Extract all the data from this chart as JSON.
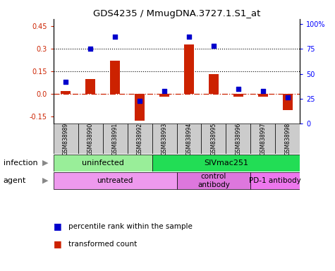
{
  "title": "GDS4235 / MmugDNA.3727.1.S1_at",
  "samples": [
    "GSM838989",
    "GSM838990",
    "GSM838991",
    "GSM838992",
    "GSM838993",
    "GSM838994",
    "GSM838995",
    "GSM838996",
    "GSM838997",
    "GSM838998"
  ],
  "transformed_count": [
    0.02,
    0.1,
    0.22,
    -0.18,
    -0.02,
    0.33,
    0.13,
    -0.02,
    -0.02,
    -0.11
  ],
  "percentile_rank": [
    42,
    75,
    87,
    23,
    33,
    87,
    78,
    35,
    33,
    26
  ],
  "ylim_left": [
    -0.2,
    0.5
  ],
  "ylim_right": [
    0,
    105
  ],
  "yticks_left": [
    -0.15,
    0.0,
    0.15,
    0.3,
    0.45
  ],
  "yticks_right": [
    0,
    25,
    50,
    75,
    100
  ],
  "hlines": [
    0.15,
    0.3
  ],
  "infection_groups": [
    {
      "label": "uninfected",
      "start": 0,
      "end": 4,
      "color": "#99EE99"
    },
    {
      "label": "SIVmac251",
      "start": 4,
      "end": 10,
      "color": "#22DD55"
    }
  ],
  "agent_groups": [
    {
      "label": "untreated",
      "start": 0,
      "end": 5,
      "color": "#EE99EE"
    },
    {
      "label": "control\nantibody",
      "start": 5,
      "end": 8,
      "color": "#DD77DD"
    },
    {
      "label": "PD-1 antibody",
      "start": 8,
      "end": 10,
      "color": "#EE77EE"
    }
  ],
  "bar_color": "#CC2200",
  "dot_color": "#0000CC",
  "zero_line_color": "#CC2200",
  "legend_items": [
    {
      "label": "transformed count",
      "color": "#CC2200"
    },
    {
      "label": "percentile rank within the sample",
      "color": "#0000CC"
    }
  ],
  "infection_label": "infection",
  "agent_label": "agent",
  "bar_width": 0.4,
  "dot_size": 20
}
